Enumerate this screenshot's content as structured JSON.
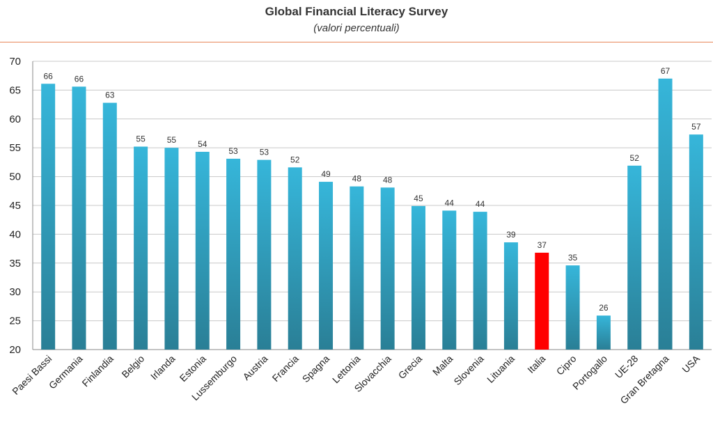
{
  "chart_data": {
    "type": "bar",
    "title": "Global Financial Literacy Survey",
    "subtitle": "(valori percentuali)",
    "xlabel": "",
    "ylabel": "",
    "ylim": [
      20,
      70
    ],
    "yticks": [
      20,
      25,
      30,
      35,
      40,
      45,
      50,
      55,
      60,
      65,
      70
    ],
    "grid": true,
    "categories": [
      "Paesi Bassi",
      "Germania",
      "Finlandia",
      "Belgio",
      "Irlanda",
      "Estonia",
      "Lussemburgo",
      "Austria",
      "Francia",
      "Spagna",
      "Lettonia",
      "Slovacchia",
      "Grecia",
      "Malta",
      "Slovenia",
      "Lituania",
      "Italia",
      "Cipro",
      "Portogallo",
      "UE-28",
      "Gran Bretagna",
      "USA"
    ],
    "values": [
      66.1,
      65.6,
      62.8,
      55.2,
      55.0,
      54.3,
      53.1,
      52.9,
      51.6,
      49.1,
      48.3,
      48.1,
      44.9,
      44.1,
      43.9,
      38.6,
      36.8,
      34.6,
      25.9,
      51.9,
      67.0,
      57.3
    ],
    "data_labels": [
      "66",
      "66",
      "63",
      "55",
      "55",
      "54",
      "53",
      "53",
      "52",
      "49",
      "48",
      "48",
      "45",
      "44",
      "44",
      "39",
      "37",
      "35",
      "26",
      "52",
      "67",
      "57"
    ],
    "highlight": "Italia",
    "colors": {
      "bar_top": "#36b6da",
      "bar_bottom": "#2a7f96",
      "highlight": "#ff0000",
      "rule": "#e8875a",
      "grid": "#c8c8c8"
    }
  }
}
